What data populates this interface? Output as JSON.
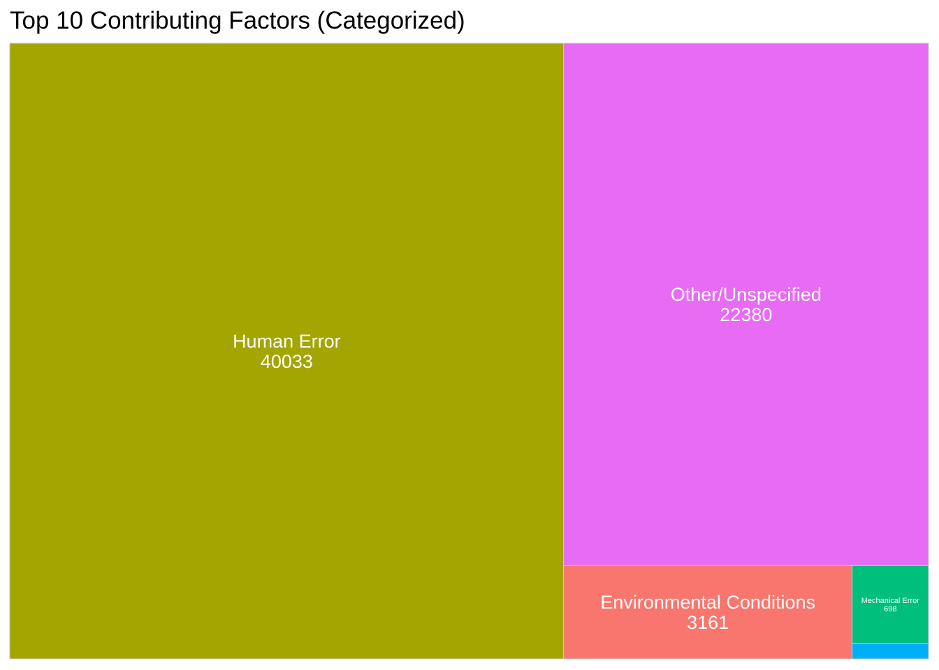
{
  "chart_data": {
    "type": "treemap",
    "title": "Top 10 Contributing Factors (Categorized)",
    "items": [
      {
        "name": "Human Error",
        "value": 40033,
        "color": "#A3A500",
        "label_visible": true
      },
      {
        "name": "Other/Unspecified",
        "value": 22380,
        "color": "#E76BF3",
        "label_visible": true
      },
      {
        "name": "Environmental Conditions",
        "value": 3161,
        "color": "#F8766D",
        "label_visible": true
      },
      {
        "name": "Mechanical Error",
        "value": 698,
        "color": "#00BF7D",
        "label_visible": true
      },
      {
        "name": "",
        "value": 139,
        "color": "#00B0F6",
        "label_visible": false
      }
    ],
    "border_color": "#C8C8C8"
  }
}
